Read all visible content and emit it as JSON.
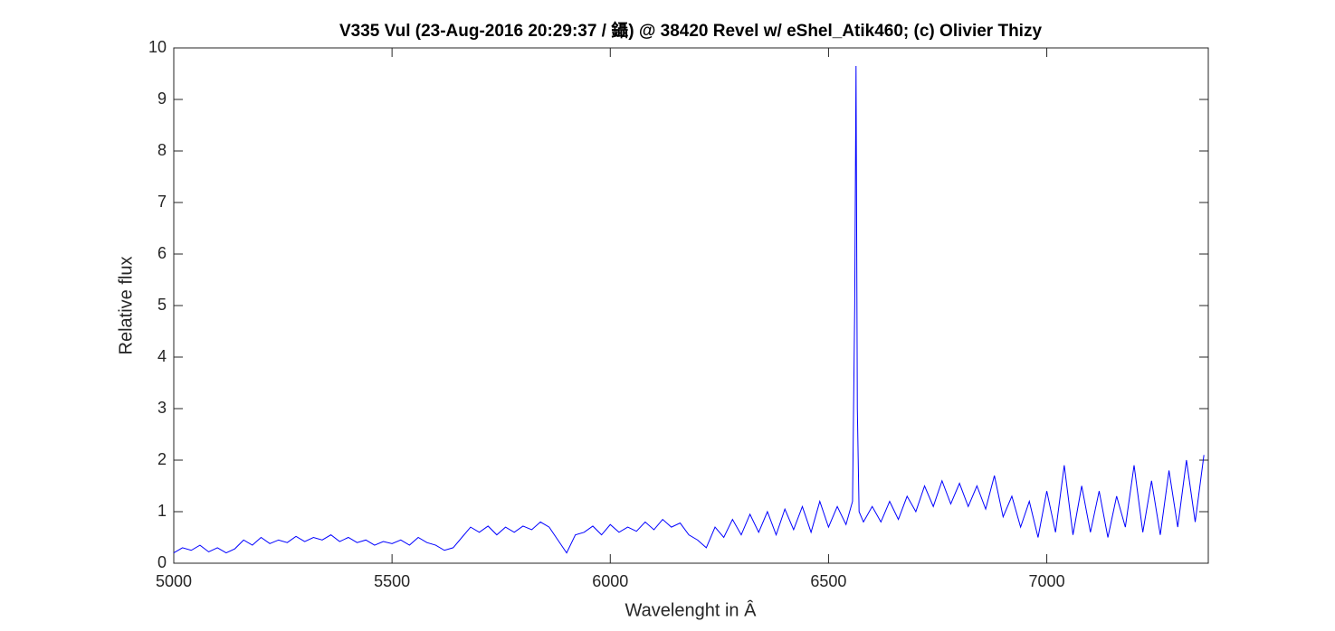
{
  "chart_data": {
    "type": "line",
    "title": "V335 Vul (23-Aug-2016 20:29:37 / 鑷) @ 38420 Revel w/ eShel_Atik460; (c) Olivier Thizy",
    "x_label": "Wavelenght in Â",
    "y_label": "Relative flux",
    "xlim": [
      5000,
      7370
    ],
    "ylim": [
      0,
      10
    ],
    "xticks": [
      5000,
      5500,
      6000,
      6500,
      7000
    ],
    "yticks": [
      0,
      1,
      2,
      3,
      4,
      5,
      6,
      7,
      8,
      9,
      10
    ],
    "grid": false,
    "series": [
      {
        "color": "#0000ff",
        "x": [
          5000,
          5020,
          5040,
          5060,
          5080,
          5100,
          5120,
          5140,
          5160,
          5180,
          5200,
          5220,
          5240,
          5260,
          5280,
          5300,
          5320,
          5340,
          5360,
          5380,
          5400,
          5420,
          5440,
          5460,
          5480,
          5500,
          5520,
          5540,
          5560,
          5580,
          5600,
          5620,
          5640,
          5660,
          5680,
          5700,
          5720,
          5740,
          5760,
          5780,
          5800,
          5820,
          5840,
          5860,
          5880,
          5900,
          5920,
          5940,
          5960,
          5980,
          6000,
          6020,
          6040,
          6060,
          6080,
          6100,
          6120,
          6140,
          6160,
          6180,
          6200,
          6220,
          6240,
          6260,
          6280,
          6300,
          6320,
          6340,
          6360,
          6380,
          6400,
          6420,
          6440,
          6460,
          6480,
          6500,
          6520,
          6540,
          6555,
          6560,
          6563,
          6566,
          6570,
          6580,
          6600,
          6620,
          6640,
          6660,
          6680,
          6700,
          6720,
          6740,
          6760,
          6780,
          6800,
          6820,
          6840,
          6860,
          6880,
          6900,
          6920,
          6940,
          6960,
          6980,
          7000,
          7020,
          7040,
          7060,
          7080,
          7100,
          7120,
          7140,
          7160,
          7180,
          7200,
          7220,
          7240,
          7260,
          7280,
          7300,
          7320,
          7340,
          7360
        ],
        "values": [
          0.2,
          0.3,
          0.25,
          0.35,
          0.22,
          0.3,
          0.2,
          0.28,
          0.45,
          0.35,
          0.5,
          0.38,
          0.45,
          0.4,
          0.52,
          0.42,
          0.5,
          0.45,
          0.55,
          0.42,
          0.5,
          0.4,
          0.45,
          0.35,
          0.42,
          0.38,
          0.45,
          0.35,
          0.5,
          0.4,
          0.35,
          0.25,
          0.3,
          0.5,
          0.7,
          0.6,
          0.72,
          0.55,
          0.7,
          0.6,
          0.72,
          0.65,
          0.8,
          0.7,
          0.45,
          0.2,
          0.55,
          0.6,
          0.72,
          0.55,
          0.75,
          0.6,
          0.7,
          0.62,
          0.8,
          0.65,
          0.85,
          0.7,
          0.78,
          0.55,
          0.45,
          0.3,
          0.7,
          0.5,
          0.85,
          0.55,
          0.95,
          0.6,
          1.0,
          0.55,
          1.05,
          0.65,
          1.1,
          0.6,
          1.2,
          0.7,
          1.1,
          0.75,
          1.2,
          5.0,
          9.65,
          3.0,
          1.0,
          0.8,
          1.1,
          0.8,
          1.2,
          0.85,
          1.3,
          1.0,
          1.5,
          1.1,
          1.6,
          1.15,
          1.55,
          1.1,
          1.5,
          1.05,
          1.7,
          0.9,
          1.3,
          0.7,
          1.2,
          0.5,
          1.4,
          0.6,
          1.9,
          0.55,
          1.5,
          0.6,
          1.4,
          0.5,
          1.3,
          0.7,
          1.9,
          0.6,
          1.6,
          0.55,
          1.8,
          0.7,
          2.0,
          0.8,
          2.1
        ]
      }
    ]
  }
}
